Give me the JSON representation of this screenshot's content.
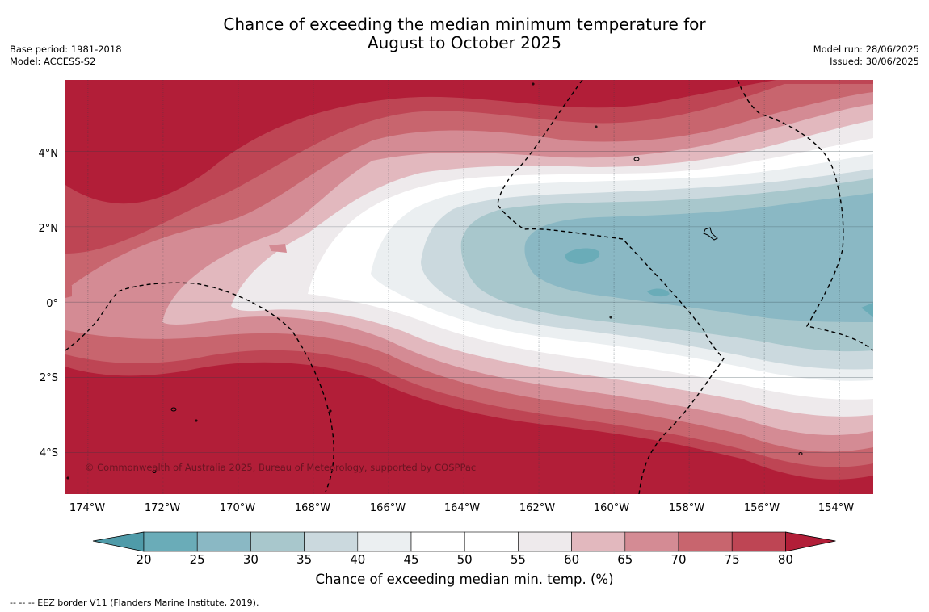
{
  "title_line1": "Chance of exceeding the median minimum temperature for",
  "title_line2": "August to October 2025",
  "meta": {
    "base_period": "Base period: 1981-2018",
    "model": "Model: ACCESS-S2",
    "model_run": "Model run: 28/06/2025",
    "issued": "Issued: 30/06/2025"
  },
  "map": {
    "credit": "© Commonwealth of Australia 2025, Bureau of Meteorology, supported by COSPPac",
    "lat_labels": [
      "4°N",
      "2°N",
      "0°",
      "2°S",
      "4°S"
    ],
    "lon_labels": [
      "174°W",
      "172°W",
      "170°W",
      "168°W",
      "166°W",
      "164°W",
      "162°W",
      "160°W",
      "158°W",
      "156°W",
      "154°W"
    ],
    "extent": {
      "lon_min": -174.6,
      "lon_max": -153.1,
      "lat_min": -5.1,
      "lat_max": 5.9
    }
  },
  "colorbar": {
    "ticks": [
      "20",
      "25",
      "30",
      "35",
      "40",
      "45",
      "50",
      "55",
      "60",
      "65",
      "70",
      "75",
      "80"
    ],
    "colors": [
      "#4f9ba9",
      "#6aacb8",
      "#8ab8c4",
      "#a8c7cc",
      "#cbd9de",
      "#ebeff1",
      "#ffffff",
      "#ffffff",
      "#eeeaec",
      "#e2b8be",
      "#d48b94",
      "#c8656e",
      "#be4554",
      "#b21e38"
    ],
    "title": "Chance of exceeding median min. temp. (%)"
  },
  "eez_note": "--  --  -- EEZ border V11 (Flanders Marine Institute, 2019)."
}
